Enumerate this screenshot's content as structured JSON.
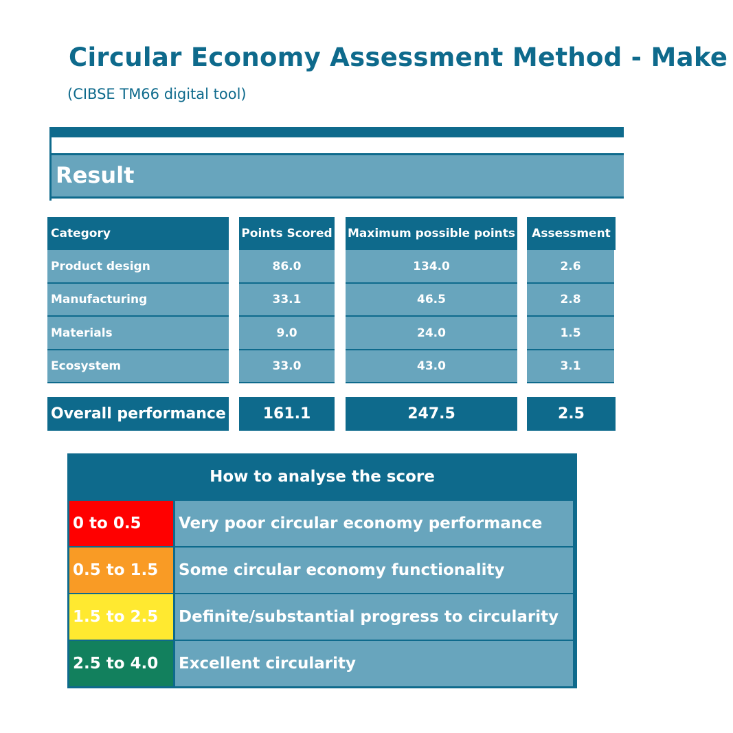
{
  "header": {
    "title": "Circular Economy Assessment Method - Make",
    "subtitle": "(CIBSE TM66 digital tool)"
  },
  "result": {
    "label": "Result"
  },
  "table": {
    "columns": [
      "Category",
      "Points Scored",
      "Maximum possible points",
      "Assessment"
    ],
    "rows": [
      [
        "Product design",
        "86.0",
        "134.0",
        "2.6"
      ],
      [
        "Manufacturing",
        "33.1",
        "46.5",
        "2.8"
      ],
      [
        "Materials",
        "9.0",
        "24.0",
        "1.5"
      ],
      [
        "Ecosystem",
        "33.0",
        "43.0",
        "3.1"
      ]
    ],
    "total": [
      "Overall performance",
      "161.1",
      "247.5",
      "2.5"
    ]
  },
  "legend": {
    "title": "How to analyse the score",
    "items": [
      {
        "range": "0 to 0.5",
        "description": "Very poor circular economy performance",
        "color": "#ff0000"
      },
      {
        "range": "0.5 to 1.5",
        "description": "Some circular economy functionality",
        "color": "#f99b25"
      },
      {
        "range": "1.5 to 2.5",
        "description": "Definite/substantial progress to circularity",
        "color": "#ffe930"
      },
      {
        "range": "2.5 to 4.0",
        "description": "Excellent circularity",
        "color": "#12805d"
      }
    ]
  }
}
